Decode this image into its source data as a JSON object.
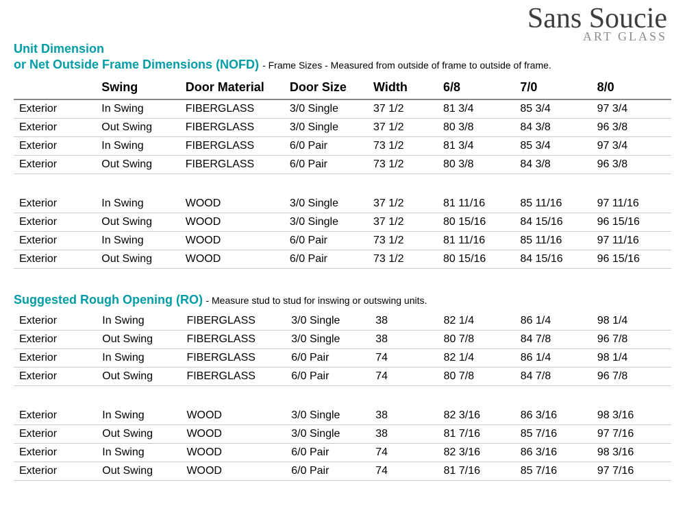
{
  "logo": {
    "main": "Sans Soucie",
    "sub": "ART GLASS"
  },
  "section1": {
    "title_line1": "Unit Dimension",
    "title_line2": "or Net Outside Frame Dimensions (NOFD)",
    "subtitle": " - Frame Sizes - Measured from outside of frame to outside of frame."
  },
  "section2": {
    "title": "Suggested Rough Opening (RO)",
    "subtitle": "  - Measure stud to stud for inswing or outswing units."
  },
  "columns": [
    {
      "label": "",
      "class": "col0"
    },
    {
      "label": "Swing",
      "class": "col1"
    },
    {
      "label": "Door Material",
      "class": "col2"
    },
    {
      "label": "Door Size",
      "class": "col3"
    },
    {
      "label": "Width",
      "class": "col4"
    },
    {
      "label": "6/8",
      "class": "col5"
    },
    {
      "label": "7/0",
      "class": "col6"
    },
    {
      "label": "8/0",
      "class": "col7"
    }
  ],
  "table1_groups": [
    [
      [
        "Exterior",
        "In Swing",
        "FIBERGLASS",
        "3/0  Single",
        "37 1/2",
        "81 3/4",
        "85 3/4",
        "97 3/4"
      ],
      [
        "Exterior",
        "Out Swing",
        "FIBERGLASS",
        "3/0  Single",
        "37 1/2",
        "80 3/8",
        "84 3/8",
        "96 3/8"
      ],
      [
        "Exterior",
        "In Swing",
        "FIBERGLASS",
        "6/0  Pair",
        "73 1/2",
        "81 3/4",
        "85 3/4",
        "97 3/4"
      ],
      [
        "Exterior",
        "Out Swing",
        "FIBERGLASS",
        "6/0  Pair",
        "73 1/2",
        "80 3/8",
        "84 3/8",
        "96 3/8"
      ]
    ],
    [
      [
        "Exterior",
        "In Swing",
        "WOOD",
        "3/0  Single",
        "37 1/2",
        "81 11/16",
        "85 11/16",
        "97 11/16"
      ],
      [
        "Exterior",
        "Out Swing",
        "WOOD",
        "3/0  Single",
        "37 1/2",
        "80 15/16",
        "84 15/16",
        "96 15/16"
      ],
      [
        "Exterior",
        "In Swing",
        "WOOD",
        "6/0  Pair",
        "73 1/2",
        "81 11/16",
        "85 11/16",
        "97 11/16"
      ],
      [
        "Exterior",
        "Out Swing",
        "WOOD",
        "6/0  Pair",
        "73 1/2",
        "80 15/16",
        "84 15/16",
        "96 15/16"
      ]
    ]
  ],
  "table2_groups": [
    [
      [
        "Exterior",
        "In Swing",
        "FIBERGLASS",
        "3/0  Single",
        "38",
        "82 1/4",
        "86 1/4",
        "98 1/4"
      ],
      [
        "Exterior",
        "Out Swing",
        "FIBERGLASS",
        "3/0  Single",
        "38",
        "80 7/8",
        "84 7/8",
        "96 7/8"
      ],
      [
        "Exterior",
        "In Swing",
        "FIBERGLASS",
        "6/0  Pair",
        "74",
        "82 1/4",
        "86 1/4",
        "98 1/4"
      ],
      [
        "Exterior",
        "Out Swing",
        "FIBERGLASS",
        "6/0  Pair",
        "74",
        "80 7/8",
        "84 7/8",
        "96 7/8"
      ]
    ],
    [
      [
        "Exterior",
        "In Swing",
        "WOOD",
        "3/0  Single",
        "38",
        "82 3/16",
        "86 3/16",
        "98 3/16"
      ],
      [
        "Exterior",
        "Out Swing",
        "WOOD",
        "3/0  Single",
        "38",
        "81 7/16",
        "85 7/16",
        "97 7/16"
      ],
      [
        "Exterior",
        "In Swing",
        "WOOD",
        "6/0  Pair",
        "74",
        "82 3/16",
        "86 3/16",
        "98 3/16"
      ],
      [
        "Exterior",
        "Out Swing",
        "WOOD",
        "6/0  Pair",
        "74",
        "81 7/16",
        "85 7/16",
        "97 7/16"
      ]
    ]
  ],
  "style": {
    "title_color": "#009da6",
    "header_underline": "#888888",
    "row_underline": "#cccccc",
    "body_fontsize": 16,
    "header_fontsize": 18,
    "title_fontsize": 18,
    "sub_fontsize": 14
  }
}
